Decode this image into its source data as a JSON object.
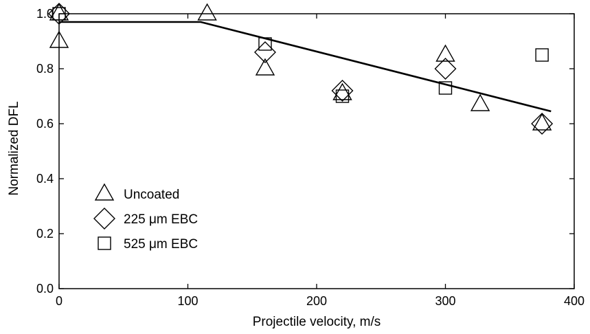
{
  "chart_data": {
    "type": "scatter",
    "xlabel": "Projectile velocity, m/s",
    "ylabel": "Normalized DFL",
    "xlim": [
      0,
      400
    ],
    "ylim": [
      0.0,
      1.0
    ],
    "x_ticks": [
      0,
      100,
      200,
      300,
      400
    ],
    "y_ticks": [
      0.0,
      0.2,
      0.4,
      0.6,
      0.8,
      1.0
    ],
    "x_tick_labels": [
      "0",
      "100",
      "200",
      "300",
      "400"
    ],
    "y_tick_labels": [
      "0.0",
      "0.2",
      "0.4",
      "0.6",
      "0.8",
      "1.0"
    ],
    "grid": false,
    "legend_position": "bottom-left",
    "series": [
      {
        "name": "Uncoated",
        "marker": "triangle",
        "points": [
          [
            0,
            1.0
          ],
          [
            0,
            0.9
          ],
          [
            115,
            1.0
          ],
          [
            160,
            0.8
          ],
          [
            220,
            0.71
          ],
          [
            300,
            0.85
          ],
          [
            327,
            0.67
          ],
          [
            375,
            0.6
          ]
        ]
      },
      {
        "name": "225 μm EBC",
        "marker": "diamond",
        "points": [
          [
            0,
            1.0
          ],
          [
            160,
            0.86
          ],
          [
            220,
            0.72
          ],
          [
            300,
            0.8
          ],
          [
            375,
            0.6
          ]
        ]
      },
      {
        "name": "525 μm EBC",
        "marker": "square",
        "points": [
          [
            0,
            1.0
          ],
          [
            160,
            0.89
          ],
          [
            220,
            0.7
          ],
          [
            300,
            0.73
          ],
          [
            375,
            0.85
          ]
        ]
      }
    ],
    "fit_line": {
      "points": [
        [
          0,
          0.97
        ],
        [
          110,
          0.97
        ],
        [
          382,
          0.645
        ]
      ]
    }
  }
}
